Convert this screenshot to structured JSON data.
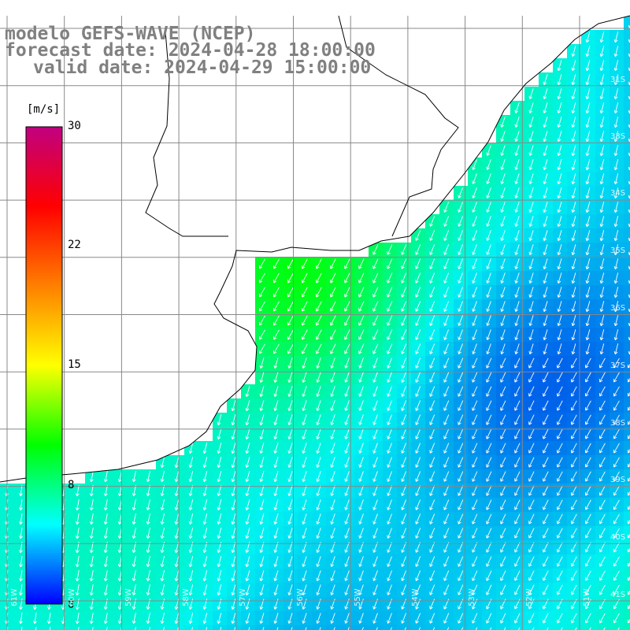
{
  "header": {
    "model": "modelo GEFS-WAVE (NCEP)",
    "forecast_date": "forecast date: 2024-04-28 18:00:00",
    "valid_date": "valid date: 2024-04-29 15:00:00"
  },
  "colorbar": {
    "unit": "[m/s]",
    "ticks": [
      "30",
      "22",
      "15",
      "8",
      "0"
    ],
    "stops": [
      "#0000ff",
      "#00ffff",
      "#00ff00",
      "#ffff00",
      "#ff7f00",
      "#ff0000",
      "#c00080"
    ]
  },
  "map": {
    "land_color": "#ffffff",
    "coast_color": "#000000",
    "grid_color": "#888888",
    "arrow_color": "#ffffff",
    "lat_labels": [
      "31S",
      "33S",
      "34S",
      "35S",
      "36S",
      "37S",
      "38S",
      "39S",
      "40S",
      "41S"
    ],
    "lon_labels": [
      "61W",
      "60W",
      "59W",
      "58W",
      "57W",
      "56W",
      "55W",
      "54W",
      "53W",
      "52W",
      "51W"
    ]
  }
}
